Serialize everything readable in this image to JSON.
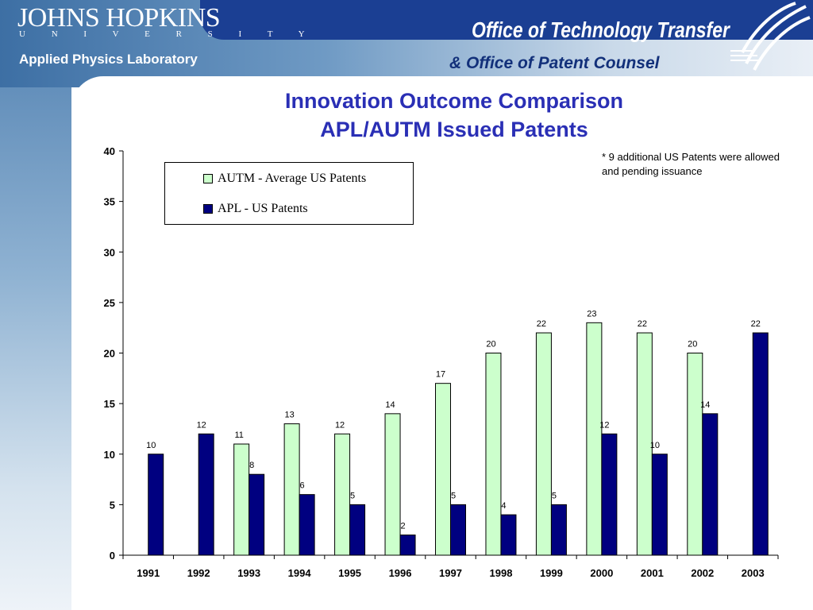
{
  "header": {
    "university_name": "JOHNS HOPKINS",
    "university_word": "UNIVERSITY",
    "lab_name": "Applied Physics Laboratory",
    "office_title": "Office of Technology Transfer",
    "office_subtitle": "& Office of Patent Counsel"
  },
  "colors": {
    "header_blue": "#1b3f93",
    "title_blue": "#2a2fb5",
    "autm_fill": "#ccffcc",
    "apl_fill": "#000080"
  },
  "note_text": "* 9 additional US Patents were allowed and pending issuance",
  "chart_data": {
    "type": "bar",
    "title": "Innovation Outcome Comparison",
    "subtitle": "APL/AUTM Issued Patents",
    "categories": [
      "1991",
      "1992",
      "1993",
      "1994",
      "1995",
      "1996",
      "1997",
      "1998",
      "1999",
      "2000",
      "2001",
      "2002",
      "2003"
    ],
    "series": [
      {
        "name": "AUTM - Average US Patents",
        "color": "#ccffcc",
        "values": [
          null,
          null,
          11,
          13,
          12,
          14,
          17,
          20,
          22,
          23,
          22,
          20,
          null
        ]
      },
      {
        "name": "APL - US Patents",
        "color": "#000080",
        "values": [
          10,
          12,
          8,
          6,
          5,
          2,
          5,
          4,
          5,
          12,
          10,
          14,
          22
        ]
      }
    ],
    "ylim": [
      0,
      40
    ],
    "yticks": [
      0,
      5,
      10,
      15,
      20,
      25,
      30,
      35,
      40
    ],
    "xlabel": "",
    "ylabel": "",
    "grid": false,
    "legend_position": "top-left"
  }
}
